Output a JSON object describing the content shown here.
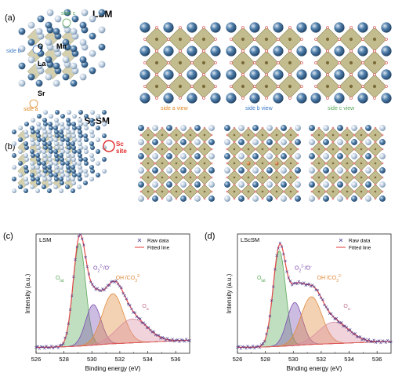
{
  "colors": {
    "ball_dark": "#2f5f8c",
    "ball_light": "#c9d7e6",
    "octa_fill": "#b8b07a",
    "octa_stroke": "#8a8450",
    "oxygen": "#e06a6a",
    "sc_atom": "#d46a1f",
    "series_olat": "#5aa85a",
    "series_o2": "#7c4fb0",
    "series_oh": "#e08a3a",
    "series_oa": "#d98ca0",
    "raw": "#4b3d8f",
    "fit": "#e34a4a",
    "label_a": "#e08a2a",
    "label_b": "#3a78c8",
    "label_c": "#5aa85a"
  },
  "panel_a": {
    "tag": "(a)",
    "title": "LSM",
    "atoms": {
      "O": "O",
      "Mn": "Mn",
      "La": "La",
      "Sr": "Sr"
    },
    "axes": {
      "side_a": "side a",
      "side_b": "side b",
      "side_c": "side c"
    },
    "views": [
      "side a view",
      "side b view",
      "side c view"
    ]
  },
  "panel_b": {
    "tag": "(b)",
    "title": "LScSM",
    "sc_label_1": "Sc",
    "sc_label_2": "site"
  },
  "chart_data": [
    {
      "type": "line",
      "panel_tag": "(c)",
      "sample": "LSM",
      "xlabel": "Binding energy (eV)",
      "ylabel": "Intensity (a.u.)",
      "xlim": [
        526,
        537
      ],
      "x_ticks": [
        526,
        528,
        530,
        532,
        534,
        536
      ],
      "legend": [
        "Raw data",
        "Fitted line"
      ],
      "legend_position": "top-right",
      "peaks": [
        {
          "name": "O_lat",
          "center": 529.1,
          "height": 0.86,
          "sigma": 0.45,
          "label_main": "O",
          "label_sub": "lat"
        },
        {
          "name": "O2-/O-",
          "center": 530.1,
          "height": 0.34,
          "sigma": 0.55,
          "label_main": "O",
          "label_sub": "2",
          "label_sup": "2-",
          "label_tail": "/O",
          "label_tail_sup": "-"
        },
        {
          "name": "OH-/CO3 2-",
          "center": 531.5,
          "height": 0.42,
          "sigma": 0.75,
          "label_main": "OH",
          "label_sup": "-",
          "label_tail": "/CO",
          "label_tail_sub": "3",
          "label_tail_sup": "2-"
        },
        {
          "name": "O_a",
          "center": 532.9,
          "height": 0.2,
          "sigma": 1.1,
          "label_main": "O",
          "label_sub": "a"
        }
      ],
      "baseline": [
        0.05,
        0.11
      ]
    },
    {
      "type": "line",
      "panel_tag": "(d)",
      "sample": "LScSM",
      "xlabel": "Binding energy (eV)",
      "ylabel": "Intensity (a.u.)",
      "xlim": [
        526,
        537
      ],
      "x_ticks": [
        526,
        528,
        530,
        532,
        534,
        536
      ],
      "legend": [
        "Raw data",
        "Fitted line"
      ],
      "legend_position": "top-right",
      "peaks": [
        {
          "name": "O_lat",
          "center": 529.0,
          "height": 0.8,
          "sigma": 0.45,
          "label_main": "O",
          "label_sub": "lat"
        },
        {
          "name": "O2-/O-",
          "center": 530.1,
          "height": 0.36,
          "sigma": 0.55,
          "label_main": "O",
          "label_sub": "2",
          "label_sup": "2-",
          "label_tail": "/O",
          "label_tail_sup": "-"
        },
        {
          "name": "OH-/CO3 2-",
          "center": 531.3,
          "height": 0.4,
          "sigma": 0.75,
          "label_main": "OH",
          "label_sup": "-",
          "label_tail": "/CO",
          "label_tail_sub": "3",
          "label_tail_sup": "2-"
        },
        {
          "name": "O_a",
          "center": 532.9,
          "height": 0.18,
          "sigma": 1.1,
          "label_main": "O",
          "label_sub": "a"
        }
      ],
      "baseline": [
        0.05,
        0.1
      ]
    }
  ]
}
